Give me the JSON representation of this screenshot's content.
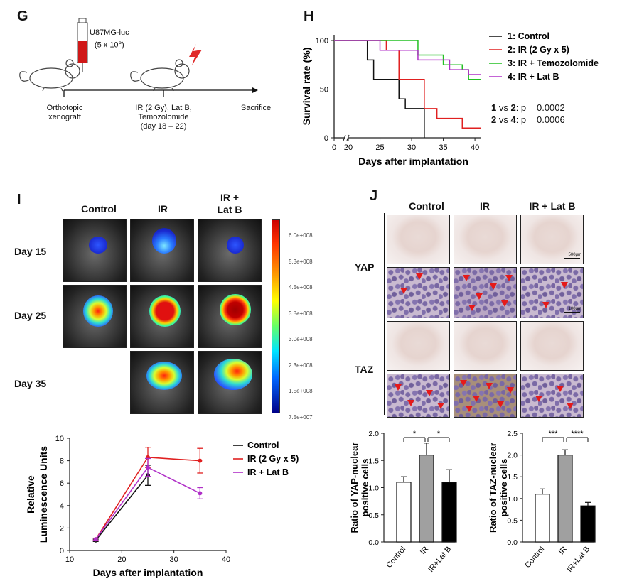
{
  "panel_G": {
    "letter": "G",
    "syringe_label_line1": "U87MG-luc",
    "syringe_label_line2": "(5 x 10",
    "syringe_label_sup": "5",
    "syringe_label_close": ")",
    "timeline": [
      {
        "line1": "Orthotopic",
        "line2": "xenograft",
        "line3": "",
        "line4": ""
      },
      {
        "line1": "IR (2 Gy), Lat B,",
        "line2": "Temozolomide",
        "line3": "(day 18 – 22)",
        "line4": ""
      },
      {
        "line1": "Sacrifice",
        "line2": "",
        "line3": "",
        "line4": ""
      }
    ]
  },
  "panel_H": {
    "letter": "H",
    "stats": [
      {
        "a": "1",
        "vs": " vs ",
        "b": "2",
        "p": ": p = 0.0002"
      },
      {
        "a": "2",
        "vs": " vs ",
        "b": "4",
        "p": ": p = 0.0006"
      }
    ]
  },
  "panel_I": {
    "letter": "I",
    "columns": [
      "Control",
      "IR",
      "IR +",
      "Lat B"
    ],
    "rows": [
      "Day 15",
      "Day 25",
      "Day 35"
    ],
    "colorbar_labels": [
      "6.0e+008",
      "5.3e+008",
      "4.5e+008",
      "3.8e+008",
      "3.0e+008",
      "2.3e+008",
      "1.5e+008",
      "7.5e+007"
    ]
  },
  "panel_J": {
    "letter": "J",
    "columns": [
      "Control",
      "IR",
      "IR + Lat B"
    ],
    "rows": [
      "YAP",
      "TAZ"
    ],
    "scalebar": "500μm",
    "scalebar2": "100μm"
  },
  "colors": {
    "control": "#111111",
    "ir": "#e02020",
    "tmz": "#22c022",
    "latb": "#b030c8",
    "gray": "#a0a0a0"
  },
  "chart_data": [
    {
      "type": "line",
      "title": "",
      "xlabel": "Days after implantation",
      "ylabel": "Survival rate (%)",
      "xlim": [
        0,
        41
      ],
      "ylim": [
        0,
        105
      ],
      "xticks": [
        0,
        20,
        25,
        30,
        35,
        40
      ],
      "yticks": [
        0,
        50,
        100
      ],
      "axis_break": true,
      "series": [
        {
          "name": "1: Control",
          "color": "#111111",
          "steps": [
            [
              0,
              100
            ],
            [
              23,
              100
            ],
            [
              23,
              80
            ],
            [
              24,
              80
            ],
            [
              24,
              60
            ],
            [
              28,
              60
            ],
            [
              28,
              40
            ],
            [
              29,
              40
            ],
            [
              29,
              30
            ],
            [
              32,
              30
            ],
            [
              32,
              0
            ]
          ]
        },
        {
          "name": "2: IR (2 Gy x 5)",
          "color": "#e02020",
          "steps": [
            [
              0,
              100
            ],
            [
              26,
              100
            ],
            [
              26,
              90
            ],
            [
              28,
              90
            ],
            [
              28,
              60
            ],
            [
              32,
              60
            ],
            [
              32,
              30
            ],
            [
              34,
              30
            ],
            [
              34,
              20
            ],
            [
              38,
              20
            ],
            [
              38,
              10
            ],
            [
              41,
              10
            ]
          ]
        },
        {
          "name": "3: IR + Temozolomide",
          "color": "#22c022",
          "steps": [
            [
              0,
              100
            ],
            [
              31,
              100
            ],
            [
              31,
              85
            ],
            [
              35,
              85
            ],
            [
              35,
              75
            ],
            [
              38,
              75
            ],
            [
              38,
              70
            ],
            [
              39,
              70
            ],
            [
              39,
              60
            ],
            [
              41,
              60
            ]
          ]
        },
        {
          "name": "4: IR + Lat B",
          "color": "#b030c8",
          "steps": [
            [
              0,
              100
            ],
            [
              25,
              100
            ],
            [
              25,
              90
            ],
            [
              31,
              90
            ],
            [
              31,
              80
            ],
            [
              36,
              80
            ],
            [
              36,
              70
            ],
            [
              39,
              70
            ],
            [
              39,
              65
            ],
            [
              41,
              65
            ]
          ]
        }
      ]
    },
    {
      "type": "line",
      "title": "",
      "xlabel": "Days after implantation",
      "ylabel": "Relative Luminescence Units",
      "xlim": [
        10,
        40
      ],
      "ylim": [
        0,
        10
      ],
      "xticks": [
        10,
        20,
        30,
        40
      ],
      "yticks": [
        0,
        2,
        4,
        6,
        8,
        10
      ],
      "series": [
        {
          "name": "Control",
          "color": "#111111",
          "x": [
            15,
            25
          ],
          "y": [
            0.9,
            6.7
          ],
          "err": [
            0.1,
            0.9
          ]
        },
        {
          "name": "IR (2 Gy x 5)",
          "color": "#e02020",
          "x": [
            15,
            25,
            35
          ],
          "y": [
            1.0,
            8.3,
            8.0
          ],
          "err": [
            0.1,
            0.9,
            1.1
          ]
        },
        {
          "name": "IR + Lat B",
          "color": "#b030c8",
          "x": [
            15,
            25,
            35
          ],
          "y": [
            1.0,
            7.4,
            5.1
          ],
          "err": [
            0.1,
            0.8,
            0.5
          ]
        }
      ]
    },
    {
      "type": "bar",
      "title": "",
      "xlabel": "",
      "ylabel": "Ratio of YAP-nuclear positive cells",
      "categories": [
        "Control",
        "IR",
        "IR+Lat B"
      ],
      "values": [
        1.1,
        1.6,
        1.1
      ],
      "errors": [
        0.1,
        0.22,
        0.23
      ],
      "bar_colors": [
        "#ffffff",
        "#a0a0a0",
        "#000000"
      ],
      "ylim": [
        0,
        2.0
      ],
      "yticks": [
        0.0,
        0.5,
        1.0,
        1.5,
        2.0
      ],
      "significance": [
        {
          "from": 0,
          "to": 1,
          "label": "*"
        },
        {
          "from": 1,
          "to": 2,
          "label": "*"
        }
      ]
    },
    {
      "type": "bar",
      "title": "",
      "xlabel": "",
      "ylabel": "Ratio of TAZ-nuclear positive cells",
      "categories": [
        "Control",
        "IR",
        "IR+Lat B"
      ],
      "values": [
        1.1,
        2.0,
        0.83
      ],
      "errors": [
        0.12,
        0.12,
        0.08
      ],
      "bar_colors": [
        "#ffffff",
        "#a0a0a0",
        "#000000"
      ],
      "ylim": [
        0,
        2.5
      ],
      "yticks": [
        0.0,
        0.5,
        1.0,
        1.5,
        2.0,
        2.5
      ],
      "significance": [
        {
          "from": 0,
          "to": 1,
          "label": "***"
        },
        {
          "from": 1,
          "to": 2,
          "label": "****"
        }
      ]
    }
  ]
}
